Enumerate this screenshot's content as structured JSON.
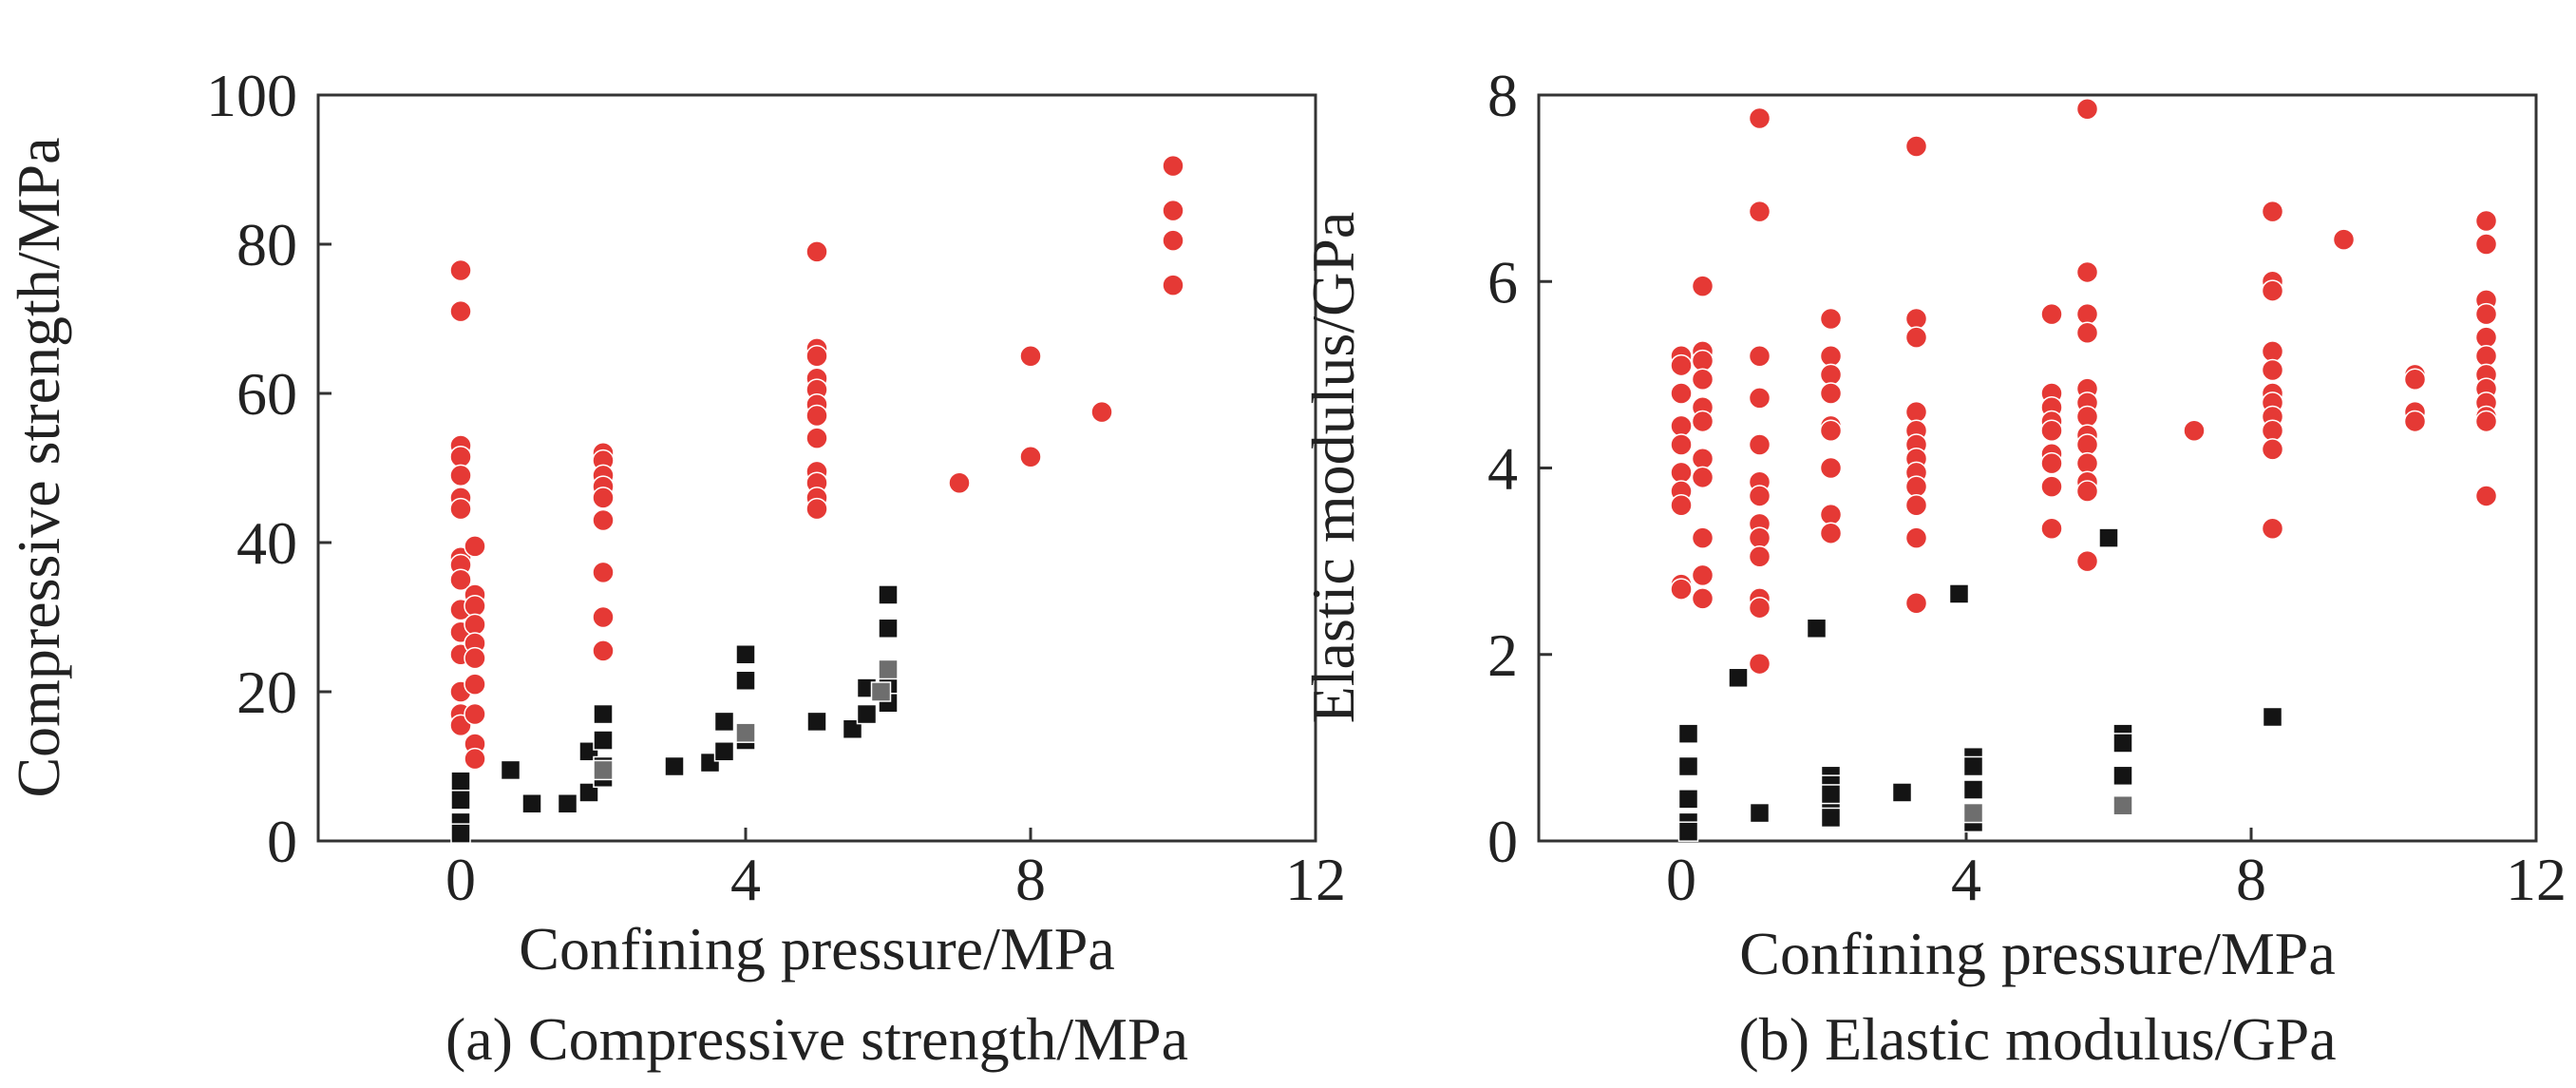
{
  "colors": {
    "red": "#e53935",
    "black": "#141414",
    "gray": "#6e6e6e",
    "frame": "#333333",
    "text": "#222222"
  },
  "chart_data": [
    {
      "type": "scatter",
      "id": "a",
      "caption": "(a) Compressive strength/MPa",
      "xlabel": "Confining pressure/MPa",
      "ylabel": "Compressive strength/MPa",
      "xlim": [
        -2,
        12
      ],
      "ylim": [
        0,
        100
      ],
      "xticks": [
        0,
        4,
        8,
        12
      ],
      "xtick_labels": [
        "0",
        "4",
        "8",
        "12"
      ],
      "yticks": [
        0,
        20,
        40,
        60,
        80,
        100
      ],
      "ytick_labels": [
        "0",
        "20",
        "40",
        "60",
        "80",
        "100"
      ],
      "series": [
        {
          "name": "red-circles",
          "marker": "circle",
          "color": "#e53935",
          "points": [
            [
              0,
              76.5
            ],
            [
              0,
              71
            ],
            [
              0,
              53
            ],
            [
              0,
              51.5
            ],
            [
              0,
              49
            ],
            [
              0,
              46
            ],
            [
              0,
              44.5
            ],
            [
              0,
              38
            ],
            [
              0,
              37
            ],
            [
              0,
              35
            ],
            [
              0,
              31
            ],
            [
              0,
              28
            ],
            [
              0,
              25
            ],
            [
              0,
              20
            ],
            [
              0,
              17
            ],
            [
              0,
              15.5
            ],
            [
              0.2,
              39.5
            ],
            [
              0.2,
              33
            ],
            [
              0.2,
              31.5
            ],
            [
              0.2,
              29
            ],
            [
              0.2,
              26.5
            ],
            [
              0.2,
              24.5
            ],
            [
              0.2,
              21
            ],
            [
              0.2,
              17
            ],
            [
              0.2,
              13
            ],
            [
              0.2,
              11
            ],
            [
              2,
              52
            ],
            [
              2,
              51
            ],
            [
              2,
              49
            ],
            [
              2,
              47.5
            ],
            [
              2,
              46
            ],
            [
              2,
              43
            ],
            [
              2,
              36
            ],
            [
              2,
              30
            ],
            [
              2,
              25.5
            ],
            [
              5,
              79
            ],
            [
              5,
              66
            ],
            [
              5,
              65
            ],
            [
              5,
              62
            ],
            [
              5,
              60.5
            ],
            [
              5,
              58.5
            ],
            [
              5,
              57
            ],
            [
              5,
              54
            ],
            [
              5,
              49.5
            ],
            [
              5,
              48
            ],
            [
              5,
              46
            ],
            [
              5,
              44.5
            ],
            [
              7,
              48
            ],
            [
              8,
              65
            ],
            [
              8,
              51.5
            ],
            [
              9,
              57.5
            ],
            [
              10,
              90.5
            ],
            [
              10,
              84.5
            ],
            [
              10,
              80.5
            ],
            [
              10,
              74.5
            ]
          ]
        },
        {
          "name": "black-squares",
          "marker": "square",
          "color": "#141414",
          "points": [
            [
              0,
              8
            ],
            [
              0,
              5.5
            ],
            [
              0,
              2.5
            ],
            [
              0,
              1
            ],
            [
              0.7,
              9.5
            ],
            [
              1,
              5
            ],
            [
              1.5,
              5
            ],
            [
              1.8,
              6.5
            ],
            [
              1.8,
              12
            ],
            [
              2,
              17
            ],
            [
              2,
              13.5
            ],
            [
              2,
              10
            ],
            [
              2,
              8.5
            ],
            [
              3,
              10
            ],
            [
              3.5,
              10.5
            ],
            [
              3.7,
              12
            ],
            [
              3.7,
              16
            ],
            [
              4,
              25
            ],
            [
              4,
              21.5
            ],
            [
              4,
              14.5
            ],
            [
              4,
              13.5
            ],
            [
              5,
              16
            ],
            [
              5.5,
              15
            ],
            [
              5.7,
              17
            ],
            [
              5.7,
              20.5
            ],
            [
              6,
              33
            ],
            [
              6,
              28.5
            ],
            [
              6,
              21
            ],
            [
              6,
              18.5
            ]
          ]
        },
        {
          "name": "gray-squares",
          "marker": "square",
          "color": "#6e6e6e",
          "points": [
            [
              2,
              9.5
            ],
            [
              6,
              23
            ],
            [
              4,
              14.5
            ],
            [
              5.9,
              20
            ]
          ]
        }
      ]
    },
    {
      "type": "scatter",
      "id": "b",
      "caption": "(b) Elastic modulus/GPa",
      "xlabel": "Confining pressure/MPa",
      "ylabel": "Elastic modulus/GPa",
      "xlim": [
        -2,
        12
      ],
      "ylim": [
        0,
        8
      ],
      "xticks": [
        0,
        4,
        8,
        12
      ],
      "xtick_labels": [
        "0",
        "4",
        "8",
        "12"
      ],
      "yticks": [
        0,
        2,
        4,
        6,
        8
      ],
      "ytick_labels": [
        "0",
        "2",
        "4",
        "6",
        "8"
      ],
      "series": [
        {
          "name": "red-circles",
          "marker": "circle",
          "color": "#e53935",
          "points": [
            [
              0,
              5.2
            ],
            [
              0,
              5.1
            ],
            [
              0,
              4.8
            ],
            [
              0,
              4.45
            ],
            [
              0,
              4.25
            ],
            [
              0,
              3.95
            ],
            [
              0,
              3.75
            ],
            [
              0,
              3.6
            ],
            [
              0,
              2.75
            ],
            [
              0,
              2.7
            ],
            [
              0.3,
              5.95
            ],
            [
              0.3,
              5.25
            ],
            [
              0.3,
              5.15
            ],
            [
              0.3,
              4.95
            ],
            [
              0.3,
              4.65
            ],
            [
              0.3,
              4.5
            ],
            [
              0.3,
              4.1
            ],
            [
              0.3,
              3.9
            ],
            [
              0.3,
              3.25
            ],
            [
              0.3,
              2.85
            ],
            [
              0.3,
              2.6
            ],
            [
              1.1,
              7.75
            ],
            [
              1.1,
              6.75
            ],
            [
              1.1,
              5.2
            ],
            [
              1.1,
              4.75
            ],
            [
              1.1,
              4.25
            ],
            [
              1.1,
              3.85
            ],
            [
              1.1,
              3.7
            ],
            [
              1.1,
              3.4
            ],
            [
              1.1,
              3.25
            ],
            [
              1.1,
              3.05
            ],
            [
              1.1,
              2.6
            ],
            [
              1.1,
              2.5
            ],
            [
              1.1,
              1.9
            ],
            [
              2.1,
              5.6
            ],
            [
              2.1,
              5.2
            ],
            [
              2.1,
              5.0
            ],
            [
              2.1,
              4.8
            ],
            [
              2.1,
              4.45
            ],
            [
              2.1,
              4.4
            ],
            [
              2.1,
              4.0
            ],
            [
              2.1,
              3.5
            ],
            [
              2.1,
              3.3
            ],
            [
              3.3,
              7.45
            ],
            [
              3.3,
              5.6
            ],
            [
              3.3,
              5.4
            ],
            [
              3.3,
              4.6
            ],
            [
              3.3,
              4.4
            ],
            [
              3.3,
              4.25
            ],
            [
              3.3,
              4.1
            ],
            [
              3.3,
              3.95
            ],
            [
              3.3,
              3.8
            ],
            [
              3.3,
              3.6
            ],
            [
              3.3,
              3.25
            ],
            [
              3.3,
              2.55
            ],
            [
              5.2,
              5.65
            ],
            [
              5.2,
              4.8
            ],
            [
              5.2,
              4.65
            ],
            [
              5.2,
              4.5
            ],
            [
              5.2,
              4.4
            ],
            [
              5.2,
              4.15
            ],
            [
              5.2,
              4.05
            ],
            [
              5.2,
              3.8
            ],
            [
              5.2,
              3.35
            ],
            [
              5.7,
              7.85
            ],
            [
              5.7,
              6.1
            ],
            [
              5.7,
              5.65
            ],
            [
              5.7,
              5.45
            ],
            [
              5.7,
              4.85
            ],
            [
              5.7,
              4.7
            ],
            [
              5.7,
              4.55
            ],
            [
              5.7,
              4.35
            ],
            [
              5.7,
              4.25
            ],
            [
              5.7,
              4.05
            ],
            [
              5.7,
              3.85
            ],
            [
              5.7,
              3.75
            ],
            [
              5.7,
              3.0
            ],
            [
              7.2,
              4.4
            ],
            [
              8.3,
              6.75
            ],
            [
              8.3,
              6.0
            ],
            [
              8.3,
              5.9
            ],
            [
              8.3,
              5.25
            ],
            [
              8.3,
              5.05
            ],
            [
              8.3,
              4.8
            ],
            [
              8.3,
              4.7
            ],
            [
              8.3,
              4.55
            ],
            [
              8.3,
              4.4
            ],
            [
              8.3,
              4.2
            ],
            [
              8.3,
              3.35
            ],
            [
              9.3,
              6.45
            ],
            [
              10.3,
              5.0
            ],
            [
              10.3,
              4.95
            ],
            [
              10.3,
              4.6
            ],
            [
              10.3,
              4.5
            ],
            [
              11.3,
              6.65
            ],
            [
              11.3,
              6.4
            ],
            [
              11.3,
              5.8
            ],
            [
              11.3,
              5.65
            ],
            [
              11.3,
              5.4
            ],
            [
              11.3,
              5.2
            ],
            [
              11.3,
              5.0
            ],
            [
              11.3,
              4.85
            ],
            [
              11.3,
              4.7
            ],
            [
              11.3,
              4.55
            ],
            [
              11.3,
              4.5
            ],
            [
              11.3,
              3.7
            ]
          ]
        },
        {
          "name": "black-squares",
          "marker": "square",
          "color": "#141414",
          "points": [
            [
              0.1,
              1.15
            ],
            [
              0.1,
              0.8
            ],
            [
              0.1,
              0.45
            ],
            [
              0.1,
              0.2
            ],
            [
              0.1,
              0.1
            ],
            [
              0.8,
              1.75
            ],
            [
              1.1,
              0.3
            ],
            [
              1.9,
              2.28
            ],
            [
              2.1,
              0.7
            ],
            [
              2.1,
              0.6
            ],
            [
              2.1,
              0.5
            ],
            [
              2.1,
              0.3
            ],
            [
              2.1,
              0.25
            ],
            [
              3.1,
              0.52
            ],
            [
              3.9,
              2.65
            ],
            [
              4.1,
              0.9
            ],
            [
              4.1,
              0.8
            ],
            [
              4.1,
              0.55
            ],
            [
              4.1,
              0.2
            ],
            [
              6.0,
              3.25
            ],
            [
              6.2,
              1.15
            ],
            [
              6.2,
              1.05
            ],
            [
              6.2,
              0.7
            ],
            [
              8.3,
              1.33
            ]
          ]
        },
        {
          "name": "gray-squares",
          "marker": "square",
          "color": "#6e6e6e",
          "points": [
            [
              4.1,
              0.3
            ],
            [
              6.2,
              0.38
            ]
          ]
        }
      ]
    }
  ]
}
